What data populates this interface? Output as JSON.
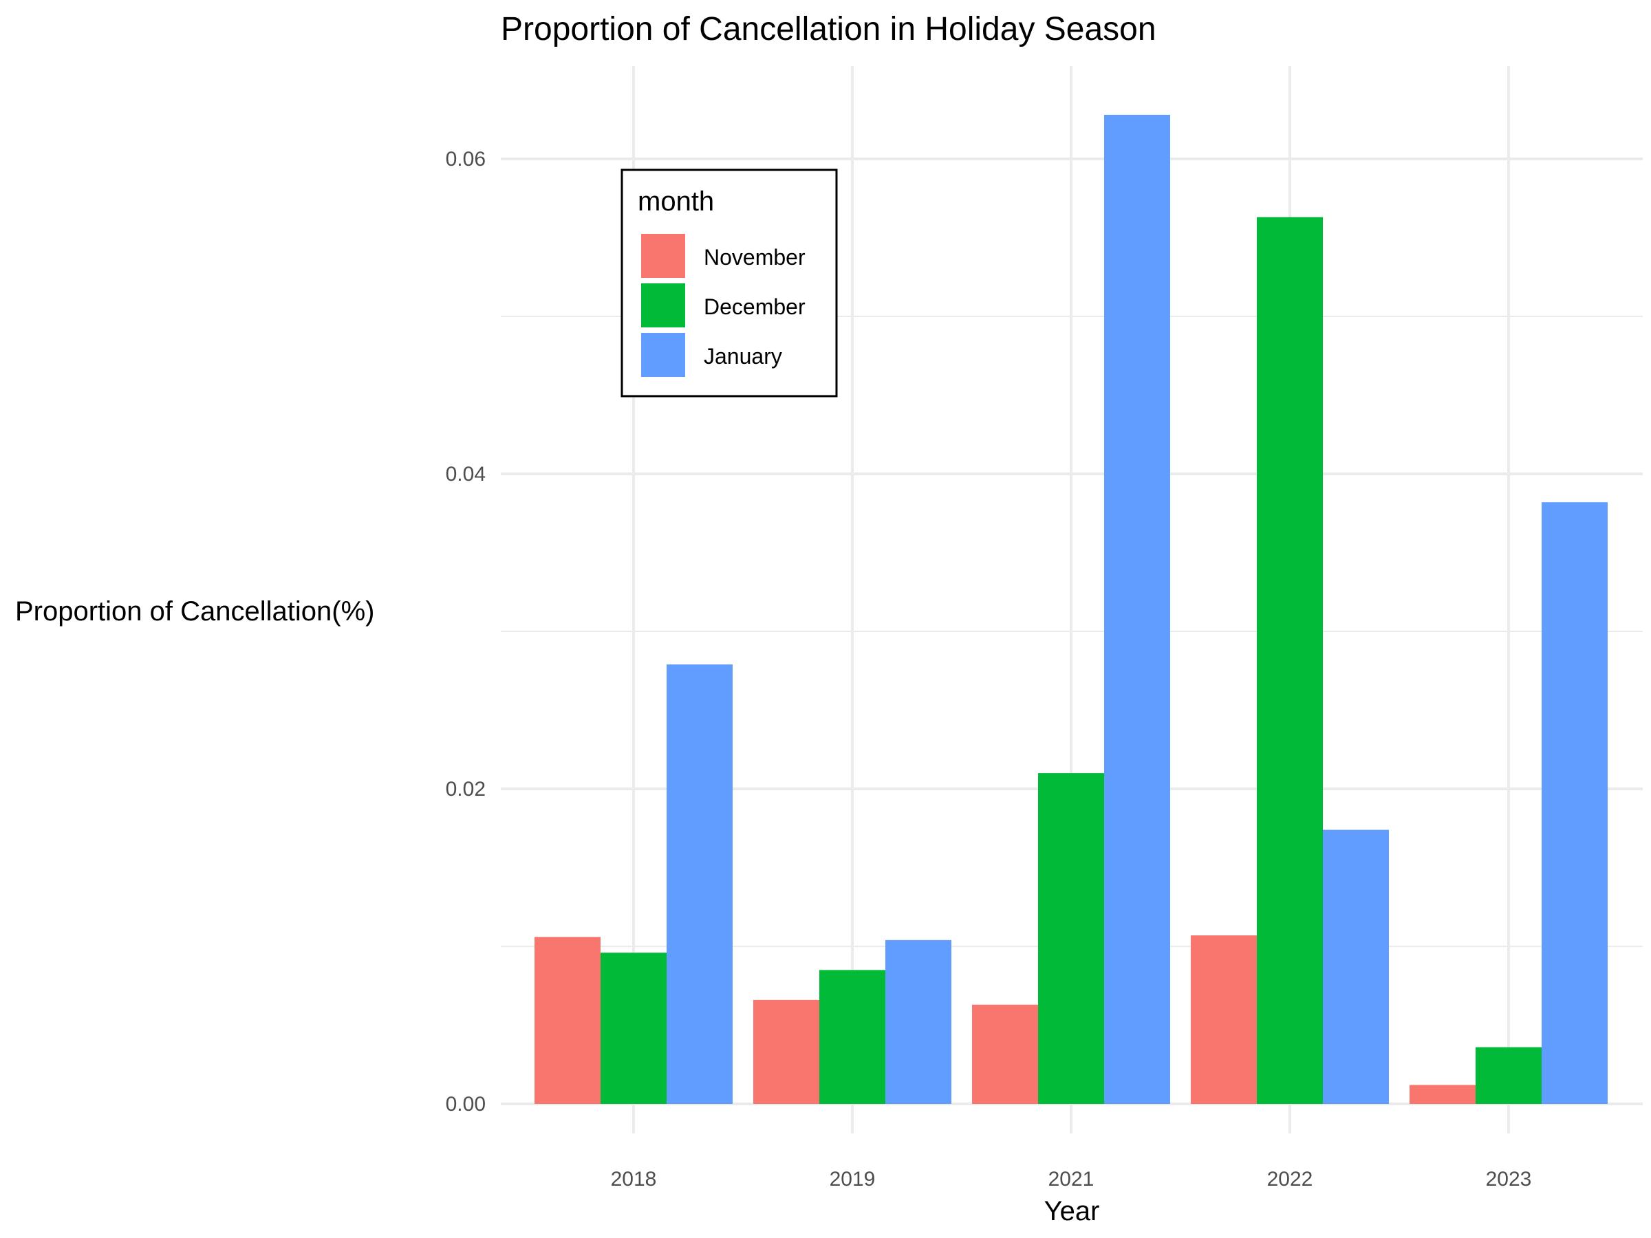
{
  "chart_data": {
    "type": "bar",
    "title": "Proportion of Cancellation in Holiday Season",
    "xlabel": "Year",
    "ylabel": "Proportion of Cancellation(%)",
    "categories": [
      "2018",
      "2019",
      "2021",
      "2022",
      "2023"
    ],
    "series": [
      {
        "name": "November",
        "color": "#F8766D",
        "values": [
          0.0106,
          0.0066,
          0.0063,
          0.0107,
          0.0012
        ]
      },
      {
        "name": "December",
        "color": "#00BA38",
        "values": [
          0.0096,
          0.0085,
          0.021,
          0.0563,
          0.0036
        ]
      },
      {
        "name": "January",
        "color": "#619CFF",
        "values": [
          0.0279,
          0.0104,
          0.0628,
          0.0174,
          0.0382
        ]
      }
    ],
    "ylim": [
      0,
      0.065
    ],
    "yticks": [
      "0.00",
      "0.02",
      "0.04",
      "0.06"
    ],
    "ytick_values": [
      0,
      0.02,
      0.04,
      0.06
    ],
    "grid": true,
    "legend": {
      "title": "month",
      "placement": "top-left"
    }
  }
}
